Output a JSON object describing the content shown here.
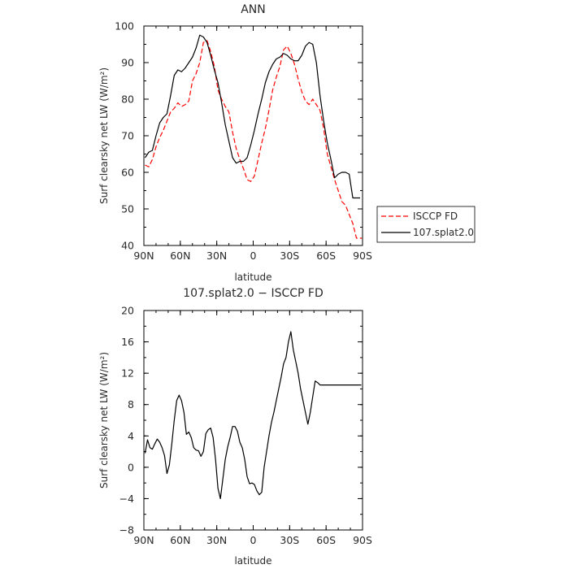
{
  "chart_data": [
    {
      "type": "line",
      "title": "ANN",
      "xlabel": "latitude",
      "ylabel": "Surf clearsky net LW (W/m²)",
      "xlim": [
        90,
        -90
      ],
      "ylim": [
        40,
        100
      ],
      "xticks": [
        90,
        60,
        30,
        0,
        -30,
        -60,
        -90
      ],
      "xtick_labels": [
        "90N",
        "60N",
        "30N",
        "0",
        "30S",
        "60S",
        "90S"
      ],
      "yticks": [
        40,
        50,
        60,
        70,
        80,
        90,
        100
      ],
      "ytick_labels": [
        "40",
        "50",
        "60",
        "70",
        "80",
        "90",
        "100"
      ],
      "legend_placement": "right-outside-bottom",
      "series": [
        {
          "name": "ISCCP FD",
          "color": "#ff0000",
          "dash": true,
          "x": [
            89,
            86,
            83,
            80,
            77,
            74,
            71,
            68,
            65,
            62,
            59,
            56,
            53,
            50,
            47,
            44,
            41,
            38,
            35,
            32,
            29,
            26,
            23,
            20,
            17,
            14,
            11,
            8,
            5,
            2,
            -1,
            -4,
            -7,
            -10,
            -13,
            -16,
            -19,
            -22,
            -25,
            -28,
            -31,
            -34,
            -37,
            -40,
            -43,
            -46,
            -49,
            -52,
            -55,
            -58,
            -61,
            -64,
            -67,
            -70,
            -73,
            -76,
            -79,
            -82,
            -85,
            -88,
            -89.5
          ],
          "values": [
            62.0,
            61.5,
            63.5,
            67.0,
            69.5,
            71.5,
            74.0,
            76.5,
            77.5,
            79.0,
            78.0,
            78.5,
            79.5,
            85.0,
            87.0,
            90.0,
            95.5,
            96.0,
            93.0,
            89.0,
            82.5,
            80.0,
            78.0,
            76.5,
            71.0,
            66.5,
            63.5,
            61.0,
            58.0,
            57.5,
            59.0,
            63.5,
            68.0,
            72.0,
            77.0,
            82.5,
            86.0,
            89.0,
            93.5,
            94.5,
            92.5,
            89.5,
            85.5,
            82.0,
            79.5,
            78.5,
            80.0,
            78.5,
            77.0,
            72.0,
            65.0,
            61.5,
            58.0,
            55.0,
            52.0,
            51.0,
            48.5,
            46.0,
            42.0,
            42.0,
            42.0
          ]
        },
        {
          "name": "107.splat2.0",
          "color": "#000000",
          "dash": false,
          "x": [
            89,
            86,
            83,
            80,
            77,
            74,
            71,
            68,
            65,
            62,
            59,
            56,
            53,
            50,
            47,
            44,
            41,
            38,
            35,
            32,
            29,
            26,
            23,
            20,
            17,
            14,
            11,
            8,
            5,
            2,
            -1,
            -4,
            -7,
            -10,
            -13,
            -16,
            -19,
            -22,
            -25,
            -28,
            -31,
            -34,
            -37,
            -40,
            -43,
            -46,
            -49,
            -52,
            -55,
            -58,
            -61,
            -64,
            -67,
            -70,
            -73,
            -76,
            -79,
            -82,
            -85,
            -88
          ],
          "values": [
            64.0,
            65.5,
            66.0,
            70.0,
            73.5,
            75.0,
            76.0,
            81.0,
            86.5,
            88.0,
            87.5,
            88.5,
            90.0,
            91.5,
            94.0,
            97.5,
            97.0,
            95.5,
            92.0,
            88.0,
            84.5,
            79.0,
            73.0,
            68.5,
            64.0,
            62.5,
            63.0,
            63.0,
            64.0,
            67.5,
            71.5,
            76.0,
            80.0,
            84.5,
            87.5,
            89.5,
            91.0,
            91.5,
            92.5,
            92.0,
            91.0,
            90.5,
            90.5,
            92.0,
            94.5,
            95.5,
            95.0,
            90.0,
            81.0,
            74.0,
            68.0,
            63.5,
            58.5,
            59.5,
            60.0,
            60.0,
            59.5,
            53.0,
            53.0,
            53.0
          ]
        }
      ]
    },
    {
      "type": "line",
      "title": "107.splat2.0 − ISCCP FD",
      "xlabel": "latitude",
      "ylabel": "Surf clearsky net LW (W/m²)",
      "xlim": [
        90,
        -90
      ],
      "ylim": [
        -8,
        20
      ],
      "xticks": [
        90,
        60,
        30,
        0,
        -30,
        -60,
        -90
      ],
      "xtick_labels": [
        "90N",
        "60N",
        "30N",
        "0",
        "30S",
        "60S",
        "90S"
      ],
      "yticks": [
        -8,
        -4,
        0,
        4,
        8,
        12,
        16,
        20
      ],
      "ytick_labels": [
        "−8",
        "−4",
        "0",
        "4",
        "8",
        "12",
        "16",
        "20"
      ],
      "series": [
        {
          "color": "#000000",
          "dash": false,
          "x": [
            89,
            87,
            85,
            83,
            81,
            79,
            77,
            75,
            73,
            71,
            69,
            67,
            65,
            63,
            61,
            59,
            57,
            55,
            53,
            51,
            49,
            47,
            45,
            43,
            41,
            39,
            37,
            35,
            33,
            31,
            29,
            27,
            25,
            23,
            21,
            19,
            17,
            15,
            13,
            11,
            9,
            7,
            5,
            3,
            1,
            -1,
            -3,
            -5,
            -7,
            -9,
            -11,
            -13,
            -15,
            -17,
            -19,
            -21,
            -23,
            -25,
            -27,
            -29,
            -31,
            -33,
            -35,
            -37,
            -39,
            -41,
            -43,
            -45,
            -47,
            -49,
            -51,
            -53,
            -55,
            -57,
            -59,
            -61,
            -63,
            -65,
            -67,
            -69,
            -71,
            -73,
            -75,
            -77,
            -79,
            -81,
            -83,
            -85,
            -87,
            -89
          ],
          "values": [
            1.8,
            3.5,
            2.5,
            2.3,
            3.0,
            3.6,
            3.2,
            2.5,
            1.5,
            -0.8,
            0.3,
            3.0,
            6.0,
            8.5,
            9.2,
            8.5,
            7.0,
            4.2,
            4.5,
            3.8,
            2.5,
            2.2,
            2.1,
            1.4,
            2.0,
            4.3,
            4.8,
            5.0,
            3.8,
            1.0,
            -2.7,
            -4.0,
            -1.5,
            1.0,
            2.6,
            3.8,
            5.2,
            5.2,
            4.6,
            3.2,
            2.5,
            1.0,
            -1.2,
            -2.1,
            -2.0,
            -2.2,
            -3.0,
            -3.5,
            -3.2,
            0.0,
            2.0,
            4.0,
            5.7,
            7.0,
            8.5,
            10.0,
            11.5,
            13.2,
            14.0,
            16.0,
            17.3,
            15.0,
            13.5,
            12.0,
            10.0,
            8.5,
            7.0,
            5.5,
            7.0,
            9.0,
            11.0,
            10.8,
            10.5,
            10.5,
            10.5,
            10.5,
            10.5,
            10.5,
            10.5,
            10.5,
            10.5,
            10.5,
            10.5,
            10.5,
            10.5,
            10.5,
            10.5,
            10.5,
            10.5,
            10.5
          ]
        }
      ]
    }
  ]
}
